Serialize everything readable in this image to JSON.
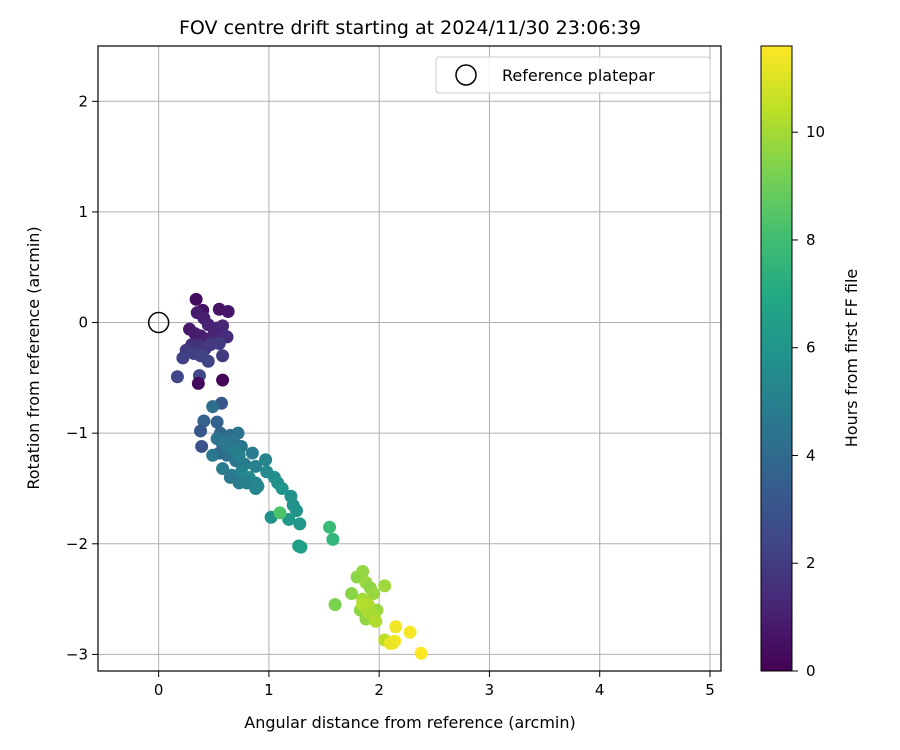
{
  "chart_data": {
    "type": "scatter",
    "title": "FOV centre drift starting at 2024/11/30 23:06:39",
    "xlabel": "Angular distance from reference (arcmin)",
    "ylabel": "Rotation from reference (arcmin)",
    "xlim": [
      -0.55,
      5.1
    ],
    "ylim": [
      -3.15,
      2.5
    ],
    "xticks": [
      "0",
      "1",
      "2",
      "3",
      "4",
      "5"
    ],
    "xtick_values": [
      0,
      1,
      2,
      3,
      4,
      5
    ],
    "yticks": [
      "−3",
      "−2",
      "−1",
      "0",
      "1",
      "2"
    ],
    "ytick_values": [
      -3,
      -2,
      -1,
      0,
      1,
      2
    ],
    "grid": true,
    "legend": {
      "position": "top-right",
      "entries": [
        "Reference platepar"
      ]
    },
    "reference_point": {
      "x": 0,
      "y": 0
    },
    "colorbar": {
      "label": "Hours from first FF file",
      "colormap": "viridis",
      "range": [
        0,
        11.6
      ],
      "ticks": [
        "0",
        "2",
        "4",
        "6",
        "8",
        "10"
      ],
      "tick_values": [
        0,
        2,
        4,
        6,
        8,
        10
      ]
    },
    "series": [
      {
        "x": [
          0.34,
          0.4,
          0.55,
          0.63,
          0.35,
          0.41,
          0.45,
          0.53,
          0.58,
          0.62,
          0.28,
          0.33,
          0.38,
          0.43,
          0.5,
          0.48,
          0.56,
          0.6,
          0.3,
          0.36,
          0.42,
          0.47,
          0.55,
          0.25,
          0.32,
          0.39,
          0.45,
          0.58,
          0.22,
          0.38,
          0.17,
          0.37,
          0.36,
          0.58,
          0.57,
          0.49,
          0.41,
          0.38,
          0.39,
          0.53,
          0.56,
          0.6,
          0.65,
          0.72,
          0.58,
          0.63,
          0.68,
          0.75,
          0.85,
          0.55,
          0.62,
          0.7,
          0.78,
          0.88,
          0.97,
          0.49,
          0.58,
          0.66,
          0.75,
          0.82,
          0.65,
          0.73,
          0.8,
          0.88,
          0.53,
          0.6,
          0.67,
          0.73,
          0.88,
          0.98,
          0.9,
          1.02,
          1.05,
          1.08,
          1.12,
          1.2,
          1.25,
          1.18,
          1.22,
          1.28,
          1.1,
          1.27,
          1.29,
          1.55,
          1.58,
          1.6,
          1.75,
          1.8,
          1.85,
          1.88,
          1.92,
          1.95,
          1.83,
          1.88,
          1.98,
          2.05,
          1.85,
          1.9,
          1.95,
          1.85,
          1.9,
          1.97,
          2.05,
          2.12,
          2.15,
          2.28,
          2.14,
          2.1,
          2.38
        ],
        "y": [
          0.21,
          0.11,
          0.12,
          0.1,
          0.09,
          0.04,
          -0.02,
          -0.05,
          -0.03,
          -0.13,
          -0.06,
          -0.1,
          -0.12,
          -0.15,
          -0.11,
          -0.18,
          -0.15,
          -0.12,
          -0.2,
          -0.21,
          -0.24,
          -0.2,
          -0.19,
          -0.25,
          -0.28,
          -0.3,
          -0.35,
          -0.3,
          -0.32,
          -0.3,
          -0.49,
          -0.48,
          -0.55,
          -0.52,
          -0.73,
          -0.76,
          -0.89,
          -0.98,
          -1.12,
          -0.9,
          -1.0,
          -1.05,
          -1.02,
          -1.0,
          -1.1,
          -1.15,
          -1.08,
          -1.12,
          -1.18,
          -1.18,
          -1.2,
          -1.25,
          -1.28,
          -1.3,
          -1.24,
          -1.2,
          -1.32,
          -1.38,
          -1.35,
          -1.4,
          -1.4,
          -1.45,
          -1.45,
          -1.5,
          -1.05,
          -1.1,
          -1.15,
          -1.2,
          -1.45,
          -1.35,
          -1.48,
          -1.76,
          -1.4,
          -1.45,
          -1.5,
          -1.57,
          -1.7,
          -1.78,
          -1.65,
          -1.82,
          -1.72,
          -2.02,
          -2.03,
          -1.85,
          -1.96,
          -2.55,
          -2.45,
          -2.3,
          -2.25,
          -2.35,
          -2.4,
          -2.45,
          -2.6,
          -2.68,
          -2.6,
          -2.38,
          -2.5,
          -2.55,
          -2.65,
          -2.55,
          -2.62,
          -2.7,
          -2.87,
          -2.9,
          -2.75,
          -2.8,
          -2.88,
          -2.9,
          -2.99
        ],
        "t": [
          0.4,
          0.5,
          0.6,
          0.7,
          0.9,
          1.0,
          1.1,
          1.2,
          1.3,
          1.4,
          0.8,
          0.9,
          1.0,
          1.1,
          1.2,
          1.3,
          1.4,
          1.5,
          1.6,
          1.7,
          1.8,
          1.9,
          2.0,
          2.0,
          2.1,
          2.2,
          2.3,
          2.0,
          2.2,
          2.3,
          2.4,
          2.5,
          0.3,
          0.2,
          3.1,
          4.2,
          3.6,
          3.2,
          2.9,
          3.6,
          3.8,
          4.0,
          4.2,
          4.4,
          4.2,
          4.4,
          4.5,
          4.6,
          4.8,
          3.8,
          4.2,
          4.5,
          4.8,
          5.0,
          5.2,
          4.6,
          4.8,
          5.0,
          5.2,
          5.4,
          4.6,
          4.8,
          5.0,
          5.2,
          4.4,
          4.6,
          4.8,
          5.0,
          5.2,
          5.5,
          5.3,
          5.8,
          5.6,
          5.8,
          6.0,
          5.8,
          6.0,
          6.2,
          5.9,
          6.1,
          8.3,
          6.4,
          6.5,
          7.8,
          7.6,
          9.3,
          9.5,
          9.6,
          9.7,
          9.8,
          9.6,
          9.8,
          9.6,
          9.7,
          9.8,
          9.9,
          10.0,
          10.2,
          10.0,
          10.3,
          10.1,
          10.2,
          10.4,
          11.2,
          11.4,
          11.5,
          11.4,
          11.3,
          11.6
        ]
      }
    ]
  }
}
